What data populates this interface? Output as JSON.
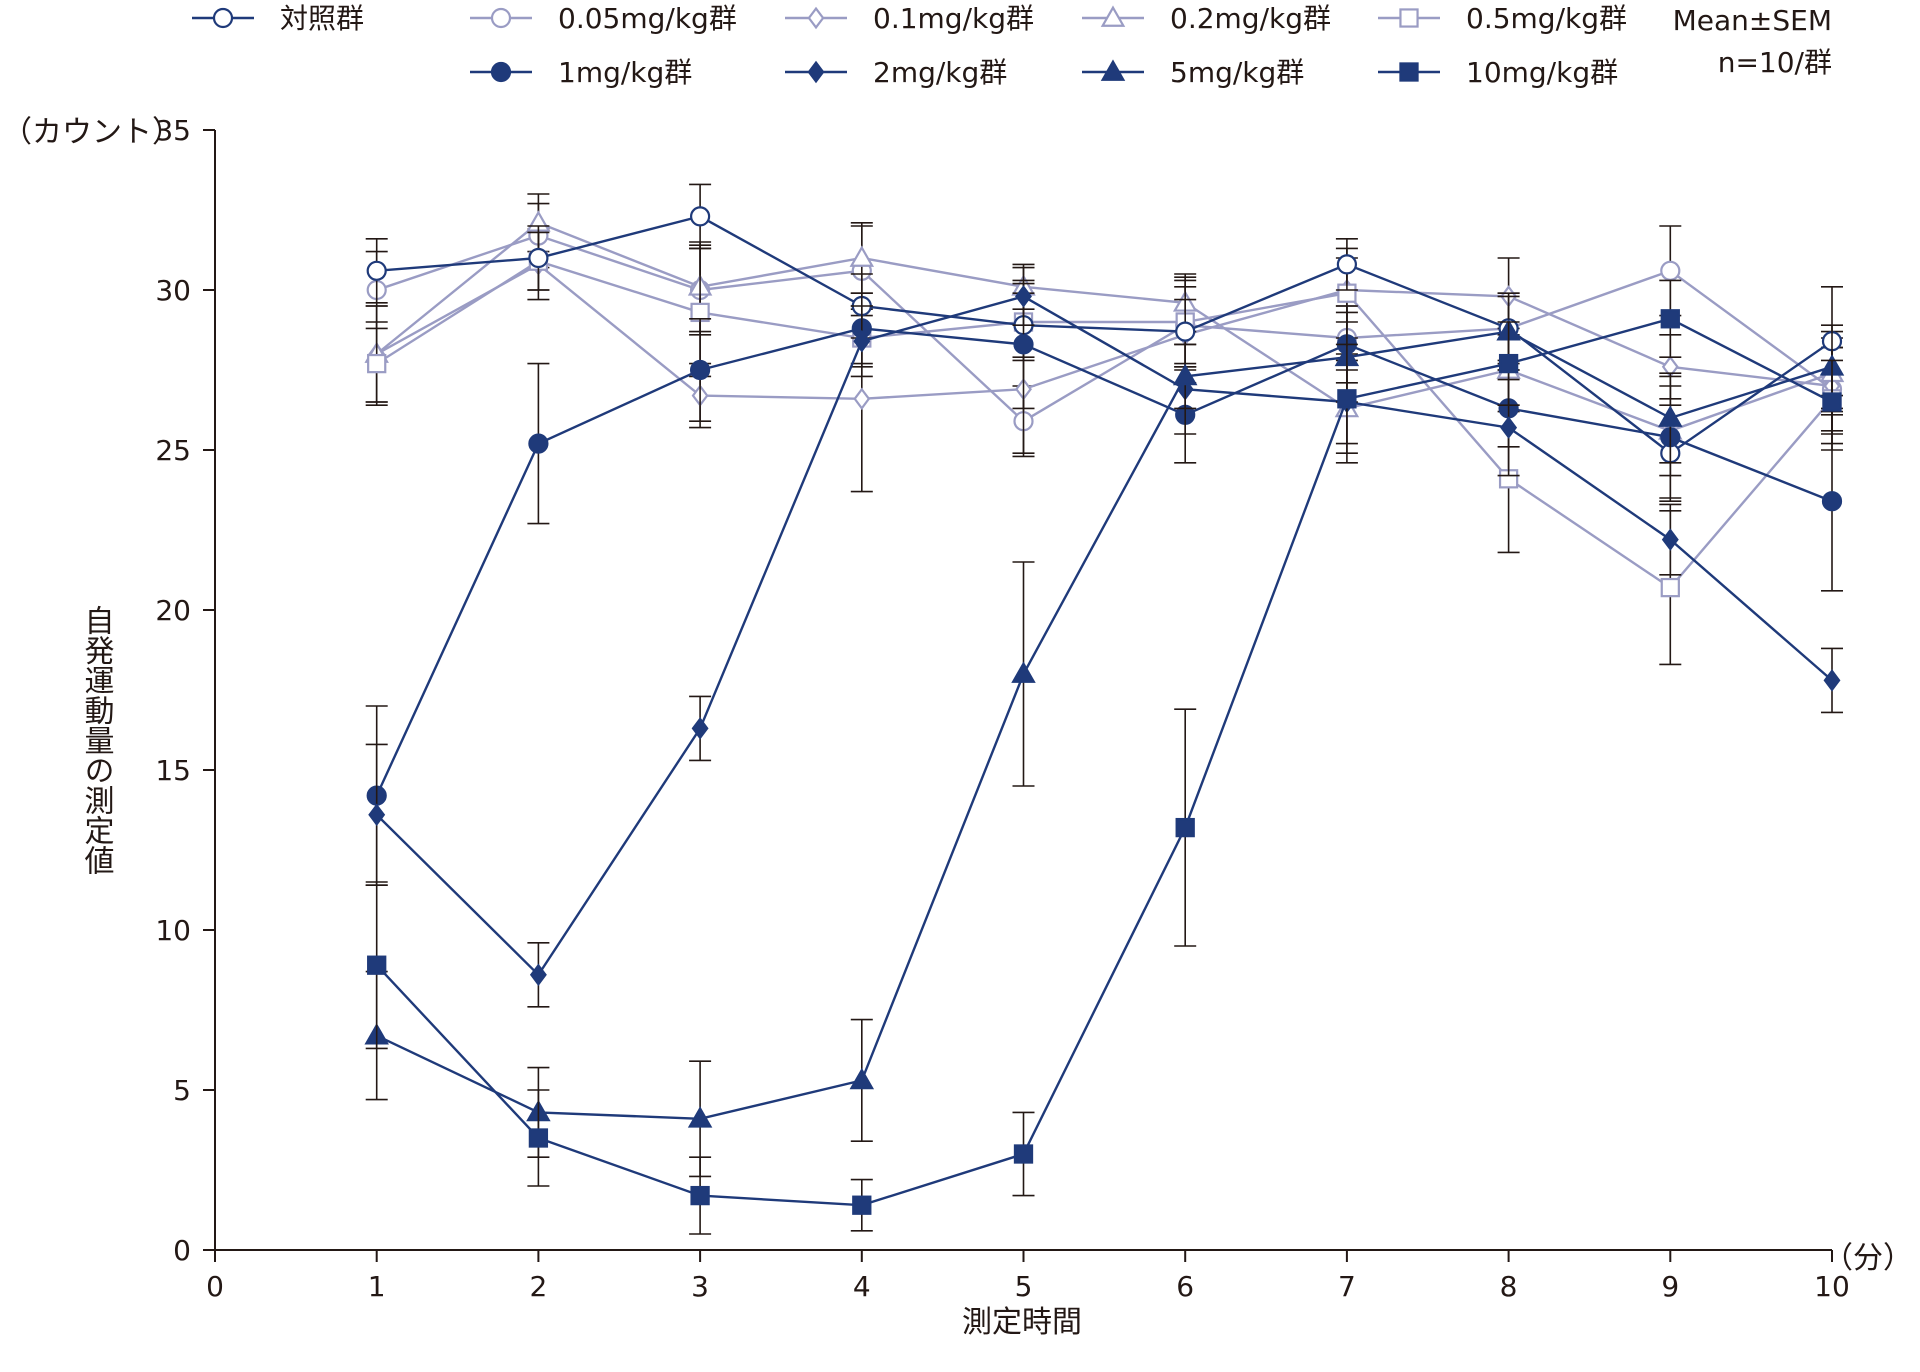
{
  "chart_data": {
    "type": "line",
    "xlabel": "測定時間",
    "ylabel": "自発運動量の測定値",
    "x_unit": "（分）",
    "y_unit": "（カウント）",
    "note_stat": "Mean±SEM",
    "note_n": "n=10/群",
    "xlim": [
      0,
      10
    ],
    "ylim": [
      0,
      35
    ],
    "x_ticks": [
      0,
      1,
      2,
      3,
      4,
      5,
      6,
      7,
      8,
      9,
      10
    ],
    "y_ticks": [
      0,
      5,
      10,
      15,
      20,
      25,
      30,
      35
    ],
    "x": [
      1,
      2,
      3,
      4,
      5,
      6,
      7,
      8,
      9,
      10
    ],
    "colors": {
      "dark": "#1f3a7a",
      "light": "#9a9cc4"
    },
    "series": [
      {
        "name": "対照群",
        "marker": "circle-open",
        "color": "dark",
        "values": [
          30.6,
          31.0,
          32.3,
          29.5,
          28.9,
          28.7,
          30.8,
          28.8,
          24.9,
          28.4
        ],
        "sem": [
          1.0,
          1.0,
          1.0,
          1.0,
          1.0,
          1.0,
          0.8,
          1.0,
          1.5,
          1.7
        ]
      },
      {
        "name": "0.05mg/kg群",
        "marker": "circle-open",
        "color": "light",
        "values": [
          30.0,
          31.7,
          30.0,
          30.6,
          25.9,
          28.9,
          28.5,
          28.8,
          30.6,
          26.9
        ],
        "sem": [
          1.2,
          1.0,
          1.4,
          1.4,
          1.1,
          1.4,
          1.0,
          1.1,
          1.4,
          1.3
        ]
      },
      {
        "name": "0.1mg/kg群",
        "marker": "diamond-open",
        "color": "light",
        "values": [
          28.0,
          30.8,
          26.7,
          26.6,
          26.9,
          28.6,
          30.0,
          29.8,
          27.6,
          27.0
        ],
        "sem": [
          1.5,
          1.1,
          1.0,
          2.9,
          2.0,
          1.5,
          1.0,
          1.2,
          1.0,
          1.5
        ]
      },
      {
        "name": "0.2mg/kg群",
        "marker": "triangle-open",
        "color": "light",
        "values": [
          28.0,
          32.1,
          30.1,
          31.0,
          30.1,
          29.6,
          26.3,
          27.5,
          25.6,
          27.4
        ],
        "sem": [
          1.5,
          0.9,
          1.4,
          1.1,
          0.7,
          0.9,
          1.7,
          1.3,
          1.4,
          1.3
        ]
      },
      {
        "name": "0.5mg/kg群",
        "marker": "square-open",
        "color": "light",
        "values": [
          27.7,
          30.9,
          29.3,
          28.5,
          29.0,
          29.0,
          29.9,
          24.1,
          20.7,
          26.6
        ],
        "sem": [
          1.3,
          0.9,
          2.0,
          0.9,
          1.2,
          1.4,
          1.4,
          2.3,
          2.4,
          1.6
        ]
      },
      {
        "name": "1mg/kg群",
        "marker": "circle-filled",
        "color": "dark",
        "values": [
          14.2,
          25.2,
          27.5,
          28.8,
          28.3,
          26.1,
          28.3,
          26.3,
          25.4,
          23.4
        ],
        "sem": [
          2.8,
          2.5,
          1.6,
          1.1,
          2.0,
          1.5,
          1.2,
          1.2,
          1.9,
          2.8
        ]
      },
      {
        "name": "2mg/kg群",
        "marker": "diamond-filled",
        "color": "dark",
        "values": [
          13.6,
          8.6,
          16.3,
          28.4,
          29.8,
          26.9,
          26.5,
          25.7,
          22.2,
          17.8
        ],
        "sem": [
          2.2,
          1.0,
          1.0,
          1.1,
          0.9,
          1.4,
          1.3,
          1.5,
          1.1,
          1.0
        ]
      },
      {
        "name": "5mg/kg群",
        "marker": "triangle-filled",
        "color": "dark",
        "values": [
          6.7,
          4.3,
          4.1,
          5.3,
          18.0,
          27.3,
          27.9,
          28.7,
          26.0,
          27.6
        ],
        "sem": [
          2.0,
          1.4,
          1.8,
          1.9,
          3.5,
          1.0,
          1.4,
          1.2,
          1.4,
          1.3
        ]
      },
      {
        "name": "10mg/kg群",
        "marker": "square-filled",
        "color": "dark",
        "values": [
          8.9,
          3.5,
          1.7,
          1.4,
          3.0,
          13.2,
          26.6,
          27.7,
          29.1,
          26.5
        ],
        "sem": [
          2.6,
          1.5,
          1.2,
          0.8,
          1.3,
          3.7,
          1.7,
          1.3,
          1.2,
          1.3
        ]
      }
    ]
  }
}
